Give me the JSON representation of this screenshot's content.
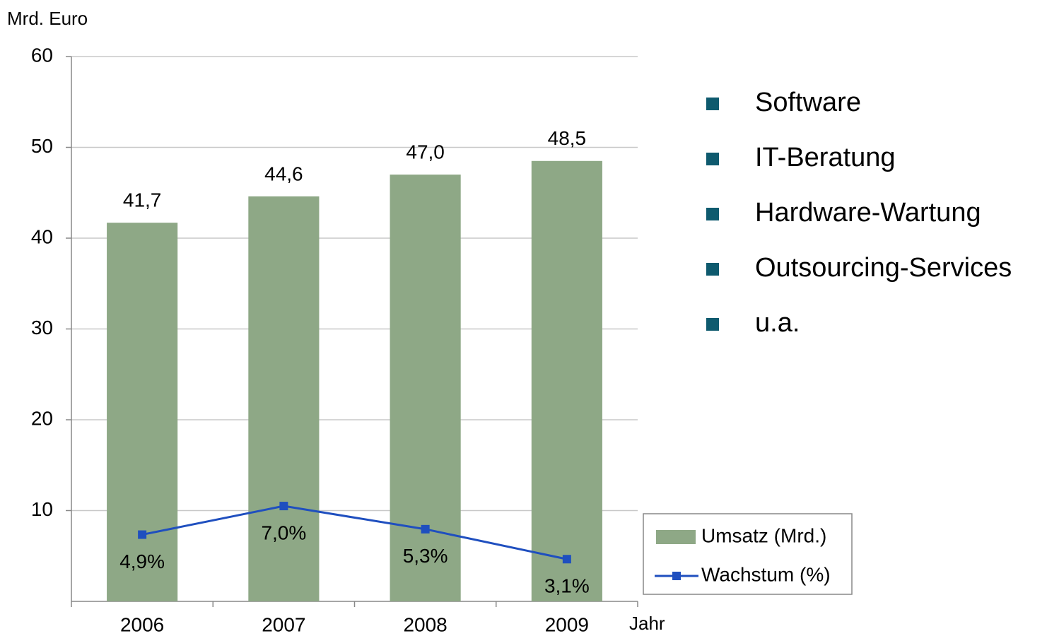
{
  "chart_data": {
    "type": "bar",
    "y_label": "Mrd. Euro",
    "x_label": "Jahr",
    "categories": [
      "2006",
      "2007",
      "2008",
      "2009"
    ],
    "series": [
      {
        "name": "Umsatz (Mrd.)",
        "type": "bar",
        "color": "#8ea886",
        "values": [
          41.7,
          44.6,
          47.0,
          48.5
        ],
        "value_labels": [
          "41,7",
          "44,6",
          "47,0",
          "48,5"
        ]
      },
      {
        "name": "Wachstum (%)",
        "type": "line",
        "axis": "y2",
        "color": "#1f4fbf",
        "values": [
          4.9,
          7.0,
          5.3,
          3.1
        ],
        "value_labels": [
          "4,9%",
          "7,0%",
          "5,3%",
          "3,1%"
        ]
      }
    ],
    "ylim": [
      0,
      60
    ],
    "yticks": [
      10,
      20,
      30,
      40,
      50,
      60
    ],
    "y2lim": [
      0,
      40
    ],
    "grid": true,
    "legend": "lower right"
  },
  "side_list": {
    "color": "#0e5a6e",
    "items": [
      "Software",
      "IT-Beratung",
      "Hardware-Wartung",
      "Outsourcing-Services",
      "u.a."
    ]
  }
}
